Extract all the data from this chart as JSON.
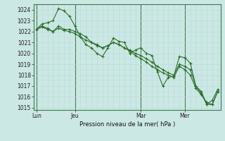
{
  "title": "Pression niveau de la mer( hPa )",
  "bg_color": "#cce8e4",
  "grid_color_minor": "#b8ddd8",
  "grid_color_major": "#4a7c59",
  "line_color": "#2d6e2d",
  "ylim": [
    1014.8,
    1024.5
  ],
  "yticks": [
    1015,
    1016,
    1017,
    1018,
    1019,
    1020,
    1021,
    1022,
    1023,
    1024
  ],
  "xtick_labels": [
    "Lun",
    "Jeu",
    "Mar",
    "Mer"
  ],
  "xtick_positions": [
    0,
    7,
    19,
    27
  ],
  "total_points": 34,
  "series": [
    [
      1022.2,
      1022.7,
      1022.8,
      1023.0,
      1024.1,
      1023.9,
      1023.4,
      1022.5,
      1021.5,
      1020.8,
      1020.5,
      1020.0,
      1019.7,
      1020.5,
      1021.4,
      1021.1,
      1021.0,
      1020.0,
      1020.3,
      1020.5,
      1020.0,
      1019.8,
      1018.3,
      1017.0,
      1017.8,
      1017.9,
      1019.7,
      1019.6,
      1019.1,
      1017.0,
      1016.3,
      1015.3,
      1015.7,
      1016.7
    ],
    [
      1022.2,
      1022.5,
      1022.3,
      1022.0,
      1022.5,
      1022.2,
      1022.2,
      1022.0,
      1021.8,
      1021.5,
      1021.0,
      1020.7,
      1020.5,
      1020.7,
      1021.0,
      1020.8,
      1020.5,
      1020.3,
      1020.0,
      1019.8,
      1019.5,
      1019.2,
      1018.8,
      1018.5,
      1018.2,
      1018.0,
      1019.0,
      1018.8,
      1018.5,
      1017.0,
      1016.5,
      1015.3,
      1015.3,
      1016.5
    ],
    [
      1022.2,
      1022.4,
      1022.2,
      1022.0,
      1022.3,
      1022.1,
      1022.0,
      1021.8,
      1021.5,
      1021.2,
      1021.0,
      1020.8,
      1020.5,
      1020.7,
      1021.0,
      1020.8,
      1020.5,
      1020.2,
      1019.8,
      1019.5,
      1019.2,
      1018.8,
      1018.5,
      1018.2,
      1018.0,
      1017.8,
      1018.8,
      1018.5,
      1018.0,
      1016.8,
      1016.2,
      1015.5,
      1015.3,
      1016.5
    ]
  ]
}
